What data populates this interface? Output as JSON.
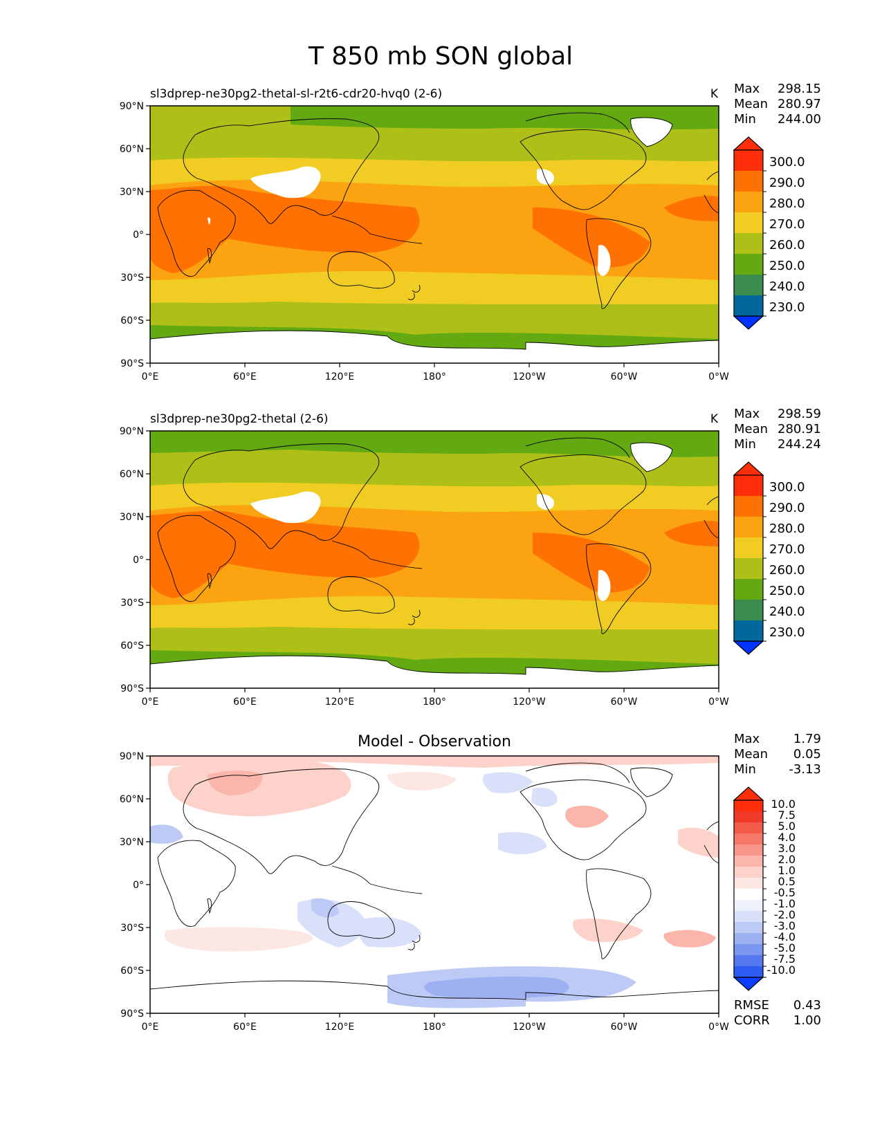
{
  "title": "T 850 mb SON global",
  "axes": {
    "lat_ticks": [
      "90°N",
      "60°N",
      "30°N",
      "0°",
      "30°S",
      "60°S",
      "90°S"
    ],
    "lon_ticks": [
      "0°E",
      "60°E",
      "120°E",
      "180°",
      "120°W",
      "60°W",
      "0°W"
    ]
  },
  "colors": {
    "temp": [
      "#0033ff",
      "#00689b",
      "#3b8c4e",
      "#62a912",
      "#aec018",
      "#f1cd24",
      "#fca311",
      "#ff7100",
      "#ff2f0c"
    ],
    "diff_neg": [
      "#0b3dff",
      "#2d5cf2",
      "#5478ef",
      "#7a96ef",
      "#9cb0f2",
      "#bccaf5",
      "#d8e0fa",
      "#eef2fd"
    ],
    "diff_pos": [
      "#fde7e3",
      "#fcd2cb",
      "#fbb5aa",
      "#f89789",
      "#f57869",
      "#f25a49",
      "#f03b2b",
      "#ff2f0c"
    ],
    "land_outline": "#000000",
    "missing": "#ffffff"
  },
  "chart_data": [
    {
      "type": "heatmap",
      "title": "sl3dprep-ne30pg2-thetal-sl-r2t6-cdr20-hvq0 (2-6)",
      "units": "K",
      "stats": {
        "max_label": "Max",
        "max": "298.15",
        "mean_label": "Mean",
        "mean": "280.97",
        "min_label": "Min",
        "min": "244.00"
      },
      "colorbar_labels": [
        "300.0",
        "290.0",
        "280.0",
        "270.0",
        "260.0",
        "250.0",
        "240.0",
        "230.0"
      ],
      "levels": [
        230,
        240,
        250,
        260,
        270,
        280,
        290,
        300
      ],
      "xlim": [
        0,
        360
      ],
      "ylim": [
        -90,
        90
      ]
    },
    {
      "type": "heatmap",
      "title": "sl3dprep-ne30pg2-thetal (2-6)",
      "units": "K",
      "stats": {
        "max_label": "Max",
        "max": "298.59",
        "mean_label": "Mean",
        "mean": "280.91",
        "min_label": "Min",
        "min": "244.24"
      },
      "colorbar_labels": [
        "300.0",
        "290.0",
        "280.0",
        "270.0",
        "260.0",
        "250.0",
        "240.0",
        "230.0"
      ],
      "levels": [
        230,
        240,
        250,
        260,
        270,
        280,
        290,
        300
      ],
      "xlim": [
        0,
        360
      ],
      "ylim": [
        -90,
        90
      ]
    },
    {
      "type": "heatmap",
      "title": "Model - Observation",
      "units": "",
      "stats": {
        "max_label": "Max",
        "max": "1.79",
        "mean_label": "Mean",
        "mean": "0.05",
        "min_label": "Min",
        "min": "-3.13"
      },
      "colorbar_labels": [
        "10.0",
        "7.5",
        "5.0",
        "4.0",
        "3.0",
        "2.0",
        "1.0",
        "0.5",
        "-0.5",
        "-1.0",
        "-2.0",
        "-3.0",
        "-4.0",
        "-5.0",
        "-7.5",
        "-10.0"
      ],
      "levels": [
        -10,
        -7.5,
        -5,
        -4,
        -3,
        -2,
        -1,
        -0.5,
        0.5,
        1,
        2,
        3,
        4,
        5,
        7.5,
        10
      ],
      "rmse_label": "RMSE",
      "rmse": "0.43",
      "corr_label": "CORR",
      "corr": "1.00",
      "xlim": [
        0,
        360
      ],
      "ylim": [
        -90,
        90
      ]
    }
  ]
}
